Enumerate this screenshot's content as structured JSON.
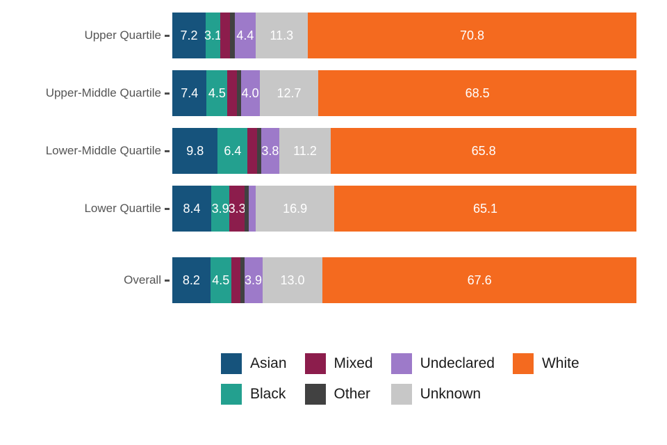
{
  "chart_data": {
    "type": "bar",
    "orientation": "horizontal",
    "stacked": true,
    "unit": "percent",
    "xlim": [
      0,
      100
    ],
    "grid": false,
    "legend_position": "bottom",
    "categories": [
      "Upper Quartile",
      "Upper-Middle Quartile",
      "Lower-Middle Quartile",
      "Lower Quartile",
      "Overall"
    ],
    "series": [
      {
        "name": "Asian",
        "color": "#16537c",
        "values": [
          7.2,
          7.4,
          9.8,
          8.4,
          8.2
        ]
      },
      {
        "name": "Black",
        "color": "#23a08f",
        "values": [
          3.1,
          4.5,
          6.4,
          3.9,
          4.5
        ]
      },
      {
        "name": "Mixed",
        "color": "#8c1d4c",
        "values": [
          2.2,
          2.0,
          2.0,
          3.3,
          1.9
        ]
      },
      {
        "name": "Other",
        "color": "#414141",
        "values": [
          1.0,
          0.9,
          1.0,
          0.8,
          0.9
        ]
      },
      {
        "name": "Undeclared",
        "color": "#9d7ac9",
        "values": [
          4.4,
          4.0,
          3.8,
          1.6,
          3.9
        ]
      },
      {
        "name": "Unknown",
        "color": "#c7c7c7",
        "values": [
          11.3,
          12.7,
          11.2,
          16.9,
          13.0
        ]
      },
      {
        "name": "White",
        "color": "#f46a1f",
        "values": [
          70.8,
          68.5,
          65.8,
          65.1,
          67.6
        ]
      }
    ],
    "label_min_value": 3.0,
    "value_label_color": "#ffffff",
    "legend_order": [
      "Asian",
      "Black",
      "Mixed",
      "Other",
      "Undeclared",
      "Unknown",
      "White"
    ]
  }
}
